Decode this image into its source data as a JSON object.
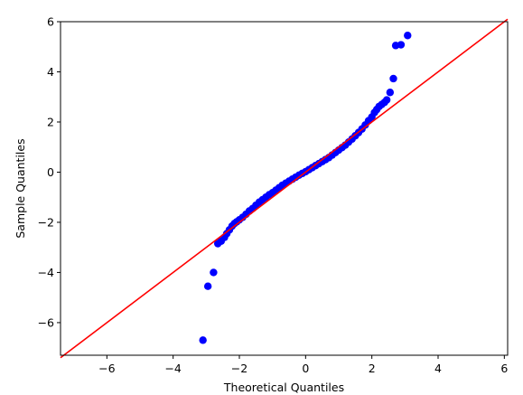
{
  "chart_data": {
    "type": "scatter",
    "title": "",
    "xlabel": "Theoretical Quantiles",
    "ylabel": "Sample Quantiles",
    "xlim": [
      -7.4,
      6.1
    ],
    "ylim": [
      -7.3,
      6.0
    ],
    "xticks": [
      -6,
      -4,
      -2,
      0,
      2,
      4,
      6
    ],
    "yticks": [
      -6,
      -4,
      -2,
      0,
      2,
      4,
      6
    ],
    "grid": false,
    "colors": {
      "points": "#0000ff",
      "reference_line": "#ff0000"
    },
    "reference_line": {
      "x": [
        -7.4,
        6.1
      ],
      "y": [
        -7.4,
        6.1
      ]
    },
    "series": [
      {
        "x": [
          -3.1,
          -2.95,
          -2.78,
          -2.65,
          -2.55,
          -2.45,
          -2.38,
          -2.3,
          -2.22,
          -2.15,
          -2.08,
          -2.0,
          -1.9,
          -1.8,
          -1.7,
          -1.6,
          -1.5,
          -1.4,
          -1.3,
          -1.2,
          -1.1,
          -1.0,
          -0.9,
          -0.8,
          -0.7,
          -0.6,
          -0.5,
          -0.4,
          -0.3,
          -0.2,
          -0.1,
          0.0,
          0.1,
          0.2,
          0.3,
          0.4,
          0.5,
          0.6,
          0.7,
          0.8,
          0.9,
          1.0,
          1.1,
          1.2,
          1.3,
          1.4,
          1.5,
          1.6,
          1.7,
          1.8,
          1.9,
          2.0,
          2.08,
          2.15,
          2.22,
          2.3,
          2.38,
          2.45,
          2.55,
          2.65,
          2.72,
          2.88,
          3.08
        ],
        "y": [
          -6.7,
          -4.55,
          -4.0,
          -2.85,
          -2.75,
          -2.6,
          -2.45,
          -2.3,
          -2.15,
          -2.05,
          -1.98,
          -1.9,
          -1.8,
          -1.68,
          -1.55,
          -1.45,
          -1.32,
          -1.2,
          -1.1,
          -1.0,
          -0.9,
          -0.82,
          -0.72,
          -0.62,
          -0.52,
          -0.44,
          -0.36,
          -0.28,
          -0.2,
          -0.12,
          -0.05,
          0.02,
          0.1,
          0.18,
          0.26,
          0.34,
          0.42,
          0.5,
          0.58,
          0.68,
          0.78,
          0.88,
          0.98,
          1.08,
          1.2,
          1.32,
          1.45,
          1.58,
          1.72,
          1.88,
          2.05,
          2.2,
          2.38,
          2.5,
          2.62,
          2.7,
          2.78,
          2.88,
          3.18,
          3.73,
          5.05,
          5.08,
          5.45
        ]
      }
    ]
  }
}
